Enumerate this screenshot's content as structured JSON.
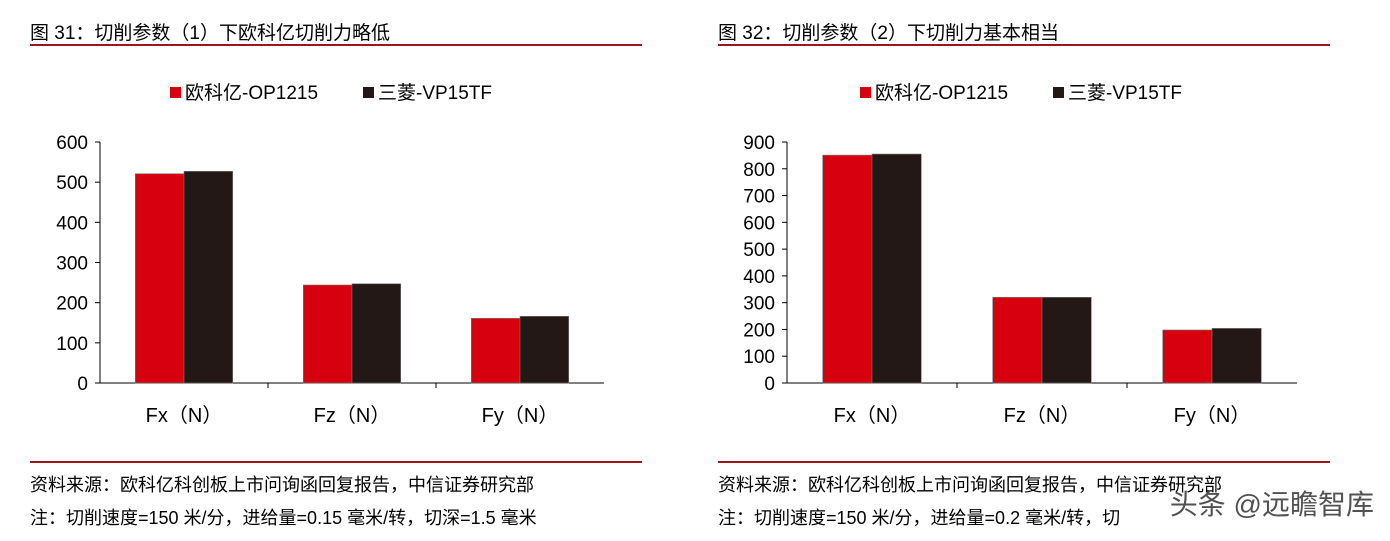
{
  "chart_data": [
    {
      "type": "bar",
      "title": "图 31：切削参数（1）下欧科亿切削力略低",
      "categories": [
        "Fx（N）",
        "Fz（N）",
        "Fy（N）"
      ],
      "series": [
        {
          "name": "欧科亿-OP1215",
          "color": "#d7000f",
          "values": [
            521,
            244,
            161
          ]
        },
        {
          "name": "三菱-VP15TF",
          "color": "#231815",
          "values": [
            527,
            247,
            166
          ]
        }
      ],
      "ylim": [
        0,
        600
      ],
      "yticks": [
        0,
        100,
        200,
        300,
        400,
        500,
        600
      ],
      "legend": "top-center",
      "source": "资料来源：欧科亿科创板上市问询函回复报告，中信证券研究部",
      "note": "注：切削速度=150 米/分，进给量=0.15 毫米/转，切深=1.5 毫米"
    },
    {
      "type": "bar",
      "title": "图 32：切削参数（2）下切削力基本相当",
      "categories": [
        "Fx（N）",
        "Fz（N）",
        "Fy（N）"
      ],
      "series": [
        {
          "name": "欧科亿-OP1215",
          "color": "#d7000f",
          "values": [
            851,
            320,
            198
          ]
        },
        {
          "name": "三菱-VP15TF",
          "color": "#231815",
          "values": [
            855,
            320,
            204
          ]
        }
      ],
      "ylim": [
        0,
        900
      ],
      "yticks": [
        0,
        100,
        200,
        300,
        400,
        500,
        600,
        700,
        800,
        900
      ],
      "legend": "top-center",
      "source": "资料来源：欧科亿科创板上市问询函回复报告，中信证券研究部",
      "note": "注：切削速度=150 米/分，进给量=0.2 毫米/转，切"
    }
  ],
  "watermark": "头条 @远瞻智库"
}
